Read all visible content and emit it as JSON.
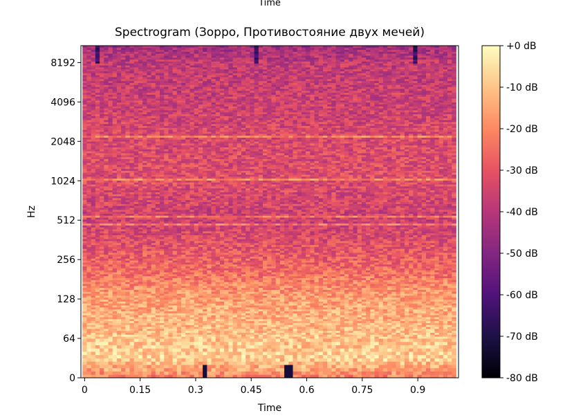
{
  "chart_data": {
    "type": "heatmap",
    "title": "Spectrogram (Зорро, Противостояние двух мечей)",
    "top_label": "Time",
    "xlabel": "Time",
    "ylabel": "Hz",
    "xlim": [
      -0.01,
      1.01
    ],
    "x_ticks": [
      0,
      0.15,
      0.3,
      0.45,
      0.6,
      0.75,
      0.9
    ],
    "x_tick_labels": [
      "0",
      "0.15",
      "0.3",
      "0.45",
      "0.6",
      "0.75",
      "0.9"
    ],
    "y_scale": "log2",
    "ylim": [
      0,
      11025
    ],
    "y_ticks": [
      0,
      64,
      128,
      256,
      512,
      1024,
      2048,
      4096,
      8192
    ],
    "y_tick_labels": [
      "0",
      "64",
      "128",
      "256",
      "512",
      "1024",
      "2048",
      "4096",
      "8192"
    ],
    "colorbar": {
      "colormap": "magma",
      "range_db": [
        -80,
        0
      ],
      "ticks": [
        0,
        -10,
        -20,
        -30,
        -40,
        -50,
        -60,
        -70,
        -80
      ],
      "tick_labels": [
        "+0 dB",
        "-10 dB",
        "-20 dB",
        "-30 dB",
        "-40 dB",
        "-50 dB",
        "-60 dB",
        "-70 dB",
        "-80 dB"
      ]
    },
    "values_db_profile": {
      "frequency_hz": [
        0,
        32,
        64,
        128,
        256,
        512,
        1024,
        2048,
        4096,
        8192,
        11025
      ],
      "typical_level_db": [
        -22,
        -8,
        -10,
        -16,
        -28,
        -36,
        -32,
        -33,
        -36,
        -38,
        -44
      ],
      "tonal_lines_hz": [
        540,
        470,
        1050,
        2250
      ],
      "time_range": [
        0,
        1.0
      ]
    }
  },
  "colors": {
    "magma_stops": [
      "#000004",
      "#1d1147",
      "#51127c",
      "#832681",
      "#b73779",
      "#e75263",
      "#fc8961",
      "#fec488",
      "#fcfdbf"
    ]
  }
}
